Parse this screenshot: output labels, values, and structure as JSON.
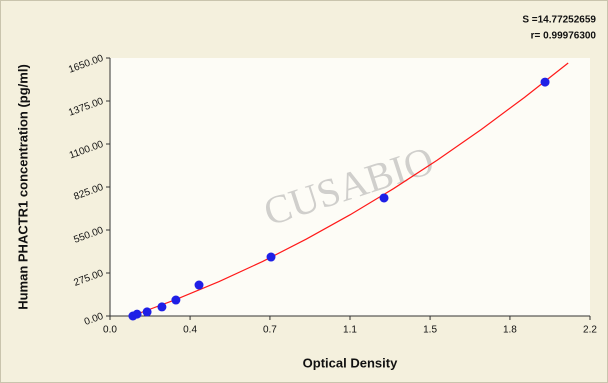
{
  "chart_data": {
    "type": "scatter",
    "annotations": [
      "S =14.77252659",
      "r= 0.99976300"
    ],
    "watermark": "CUSABIO",
    "x_label": "Optical Density",
    "y_label": "Human PHACTR1 concentration (pg/ml)",
    "x": [
      0.105,
      0.124,
      0.17,
      0.238,
      0.302,
      0.408,
      0.738,
      1.256,
      1.994
    ],
    "values": [
      0,
      12,
      26,
      58,
      102,
      198,
      377,
      755,
      1496
    ],
    "color": "#1f1fe6",
    "fit": {
      "x": [
        0.1,
        0.3,
        0.5,
        0.7,
        0.9,
        1.1,
        1.3,
        1.5,
        1.7,
        1.9,
        2.1
      ],
      "values": [
        0,
        104,
        220,
        349,
        492,
        647,
        815,
        997,
        1191,
        1398,
        1618
      ],
      "color": "#ff1a1a"
    },
    "xlim": [
      0,
      2.2
    ],
    "ylim": [
      0,
      1650
    ],
    "xticks": [
      {
        "value": 0,
        "label": "0.0"
      },
      {
        "value": 0.367,
        "label": "0.4"
      },
      {
        "value": 0.733,
        "label": "0.7"
      },
      {
        "value": 1.1,
        "label": "1.1"
      },
      {
        "value": 1.467,
        "label": "1.5"
      },
      {
        "value": 1.833,
        "label": "1.8"
      },
      {
        "value": 2.2,
        "label": "2.2"
      }
    ],
    "yticks": [
      {
        "value": 0,
        "label": "0.00"
      },
      {
        "value": 275,
        "label": "275.00"
      },
      {
        "value": 550,
        "label": "550.00"
      },
      {
        "value": 825,
        "label": "825.00"
      },
      {
        "value": 1100,
        "label": "1100.00"
      },
      {
        "value": 1375,
        "label": "1375.00"
      },
      {
        "value": 1650,
        "label": "1650.00"
      }
    ]
  }
}
